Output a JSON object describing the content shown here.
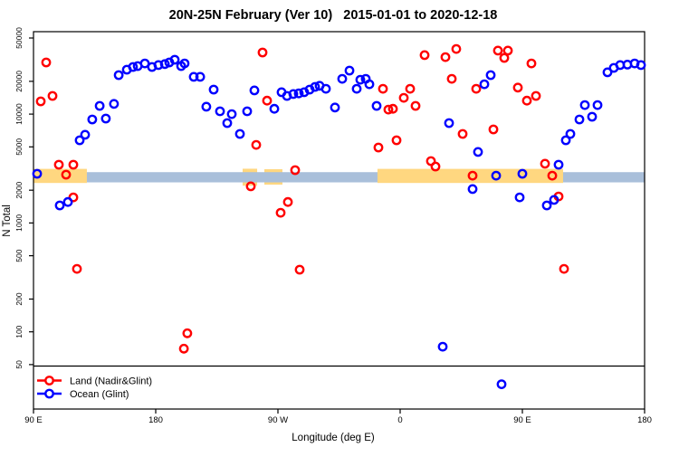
{
  "title": "20N-25N February (Ver 10)   2015-01-01 to 2020-12-18",
  "legend": {
    "land_label": "Land (Nadir&Glint)",
    "ocean_label": "Ocean (Glint)"
  },
  "colors": {
    "land": "#ff0000",
    "ocean": "#0000ff",
    "band_orange": "#ffd780",
    "band_blue": "#a9bfda",
    "axis": "#000000"
  },
  "chart_data": {
    "type": "scatter",
    "title": "20N-25N February (Ver 10)   2015-01-01 to 2020-12-18",
    "xlabel": "Longitude (deg E)",
    "ylabel": "N Total",
    "x_axis": {
      "note": "x stored as degrees east along axis starting at 90E; axis spans 450 deg (90E..180..90W..0..90E..180)",
      "range_deg": [
        0,
        450
      ],
      "tick_deg": [
        0,
        90,
        180,
        270,
        360,
        450
      ],
      "tick_labels": [
        "90 E",
        "180",
        "90 W",
        "0",
        "90 E",
        "180"
      ]
    },
    "y_axis": {
      "scale": "log10",
      "ticks": [
        50000,
        20000,
        10000,
        5000,
        2000,
        1000,
        500,
        200,
        100,
        50
      ],
      "range": [
        28,
        62000
      ]
    },
    "reference_bands": [
      {
        "layer": "under",
        "color": "#ffd780",
        "deg": [
          154,
          164.7
        ],
        "value": [
          2200,
          3150
        ]
      },
      {
        "layer": "under",
        "color": "#ffd780",
        "deg": [
          170,
          183.3
        ],
        "value": [
          2250,
          3120
        ]
      },
      {
        "layer": "mid",
        "color": "#a9bfda",
        "deg": [
          37.3,
          450
        ],
        "value": [
          2360,
          2930
        ]
      },
      {
        "layer": "over",
        "color": "#ffd780",
        "deg": [
          0,
          39.3
        ],
        "value": [
          2330,
          3140
        ]
      },
      {
        "layer": "over",
        "color": "#ffd780",
        "deg": [
          253.3,
          390
        ],
        "value": [
          2330,
          3140
        ]
      }
    ],
    "series": [
      {
        "name": "Land (Nadir&Glint)",
        "color": "#ff0000",
        "points": [
          [
            9.3,
            29800
          ],
          [
            5.3,
            13100
          ],
          [
            14,
            14700
          ],
          [
            18.7,
            3430
          ],
          [
            29.3,
            3430
          ],
          [
            24,
            2780
          ],
          [
            29.3,
            1720
          ],
          [
            32,
            379
          ],
          [
            110.7,
            70
          ],
          [
            113.3,
            97
          ],
          [
            168.7,
            36800
          ],
          [
            172,
            13300
          ],
          [
            164,
            5220
          ],
          [
            192.7,
            3060
          ],
          [
            160,
            2170
          ],
          [
            187.3,
            1560
          ],
          [
            182,
            1240
          ],
          [
            196,
            372
          ],
          [
            257.3,
            17100
          ],
          [
            272.7,
            14100
          ],
          [
            277.3,
            17100
          ],
          [
            261.3,
            11000
          ],
          [
            264.7,
            11200
          ],
          [
            281.3,
            11900
          ],
          [
            267.3,
            5750
          ],
          [
            254,
            4930
          ],
          [
            292.7,
            3700
          ],
          [
            296,
            3300
          ],
          [
            288,
            34800
          ],
          [
            303.3,
            33400
          ],
          [
            311.3,
            39700
          ],
          [
            308,
            21100
          ],
          [
            342,
            38300
          ],
          [
            349.3,
            38300
          ],
          [
            346.7,
            32800
          ],
          [
            366.7,
            29200
          ],
          [
            326,
            17100
          ],
          [
            356.7,
            17500
          ],
          [
            363.3,
            13300
          ],
          [
            370,
            14700
          ],
          [
            316,
            6570
          ],
          [
            338.7,
            7230
          ],
          [
            376.7,
            3500
          ],
          [
            323.3,
            2720
          ],
          [
            382,
            2720
          ],
          [
            386.7,
            1750
          ],
          [
            390.7,
            379
          ]
        ]
      },
      {
        "name": "Ocean (Glint)",
        "color": "#0000ff",
        "points": [
          [
            2.7,
            2830
          ],
          [
            19.3,
            1450
          ],
          [
            25.3,
            1560
          ],
          [
            34,
            5750
          ],
          [
            38,
            6460
          ],
          [
            43.3,
            8930
          ],
          [
            53.3,
            9100
          ],
          [
            48.7,
            11900
          ],
          [
            59.3,
            12400
          ],
          [
            62.7,
            22800
          ],
          [
            68.7,
            25600
          ],
          [
            73.3,
            27100
          ],
          [
            76.7,
            27600
          ],
          [
            82,
            29200
          ],
          [
            87.3,
            27100
          ],
          [
            92,
            28200
          ],
          [
            96.7,
            28800
          ],
          [
            100,
            29800
          ],
          [
            104,
            31600
          ],
          [
            108.7,
            27600
          ],
          [
            111.3,
            29200
          ],
          [
            118,
            22000
          ],
          [
            122.7,
            22000
          ],
          [
            132.7,
            16800
          ],
          [
            127.3,
            11700
          ],
          [
            137.3,
            10600
          ],
          [
            146,
            10000
          ],
          [
            142.7,
            8270
          ],
          [
            152,
            6570
          ],
          [
            157.3,
            10600
          ],
          [
            162.7,
            16500
          ],
          [
            177.3,
            11200
          ],
          [
            182.7,
            15900
          ],
          [
            186.7,
            14700
          ],
          [
            191.3,
            15300
          ],
          [
            195.3,
            15500
          ],
          [
            199.3,
            15900
          ],
          [
            203.3,
            16800
          ],
          [
            207.3,
            17800
          ],
          [
            210.7,
            18200
          ],
          [
            215.3,
            17100
          ],
          [
            222,
            11500
          ],
          [
            227.3,
            21100
          ],
          [
            232.7,
            25100
          ],
          [
            238,
            17100
          ],
          [
            240.7,
            20700
          ],
          [
            244.7,
            21100
          ],
          [
            247.3,
            18800
          ],
          [
            252.7,
            11900
          ],
          [
            306,
            8270
          ],
          [
            301.3,
            73
          ],
          [
            336.7,
            22800
          ],
          [
            332,
            18800
          ],
          [
            327.3,
            4490
          ],
          [
            340.7,
            2720
          ],
          [
            360,
            2830
          ],
          [
            323.3,
            2050
          ],
          [
            358,
            1720
          ],
          [
            344.7,
            33
          ],
          [
            386.7,
            3430
          ],
          [
            383.3,
            1630
          ],
          [
            378,
            1450
          ],
          [
            392,
            5750
          ],
          [
            395.3,
            6570
          ],
          [
            402,
            8930
          ],
          [
            411.3,
            9460
          ],
          [
            406,
            12100
          ],
          [
            415.3,
            12100
          ],
          [
            422.7,
            24200
          ],
          [
            427.3,
            26600
          ],
          [
            432,
            28200
          ],
          [
            437.3,
            28500
          ],
          [
            442.7,
            29200
          ],
          [
            447.3,
            28200
          ]
        ]
      }
    ],
    "legend_position": "bottom-left",
    "grid": false
  }
}
